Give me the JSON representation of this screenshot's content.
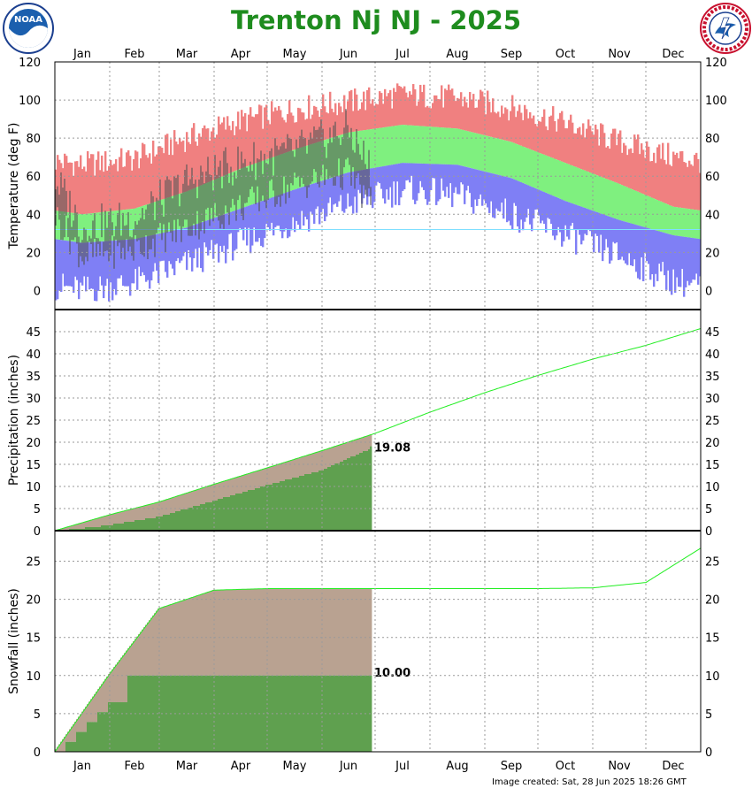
{
  "header": {
    "title": "Trenton Nj NJ - 2025",
    "footer": "Image created: Sat, 28 Jun 2025 18:26 GMT"
  },
  "icons": [
    "noaa-logo",
    "nws-logo"
  ],
  "chart_data": [
    {
      "type": "bar",
      "name": "temperature-panel",
      "ylabel": "Temperature (deg F)",
      "ylim": [
        -10,
        120
      ],
      "yticks": [
        0,
        20,
        40,
        60,
        80,
        100,
        120
      ],
      "months": [
        "Jan",
        "Feb",
        "Mar",
        "Apr",
        "May",
        "Jun",
        "Jul",
        "Aug",
        "Sep",
        "Oct",
        "Nov",
        "Dec"
      ],
      "grid": true,
      "data_through_day": 179,
      "colors": {
        "record_high": "#f08080",
        "normal_band": "#7ff07f",
        "record_low": "#7f7ff5",
        "observed": "#555555",
        "freeze_line": "#7fdfff"
      },
      "normal_high_monthly": [
        40,
        43,
        52,
        64,
        74,
        83,
        87,
        85,
        78,
        67,
        56,
        44
      ],
      "normal_low_monthly": [
        25,
        27,
        33,
        43,
        53,
        62,
        67,
        66,
        59,
        47,
        37,
        29
      ],
      "record_high_monthly": [
        66,
        69,
        80,
        89,
        95,
        99,
        103,
        101,
        96,
        88,
        78,
        70
      ],
      "record_low_monthly": [
        0,
        4,
        14,
        25,
        36,
        45,
        53,
        50,
        40,
        29,
        18,
        5
      ],
      "observed_high_monthly": [
        33,
        38,
        57,
        67,
        73,
        85
      ],
      "observed_low_monthly": [
        18,
        22,
        33,
        44,
        55,
        62
      ]
    },
    {
      "type": "area",
      "name": "precipitation-panel",
      "ylabel": "Precipitation (inches)",
      "ylim": [
        0,
        50
      ],
      "yticks": [
        0,
        5,
        10,
        15,
        20,
        25,
        30,
        35,
        40,
        45
      ],
      "grid": true,
      "colors": {
        "normal": "#22ee22",
        "observed": "#5fa04f",
        "deficit": "#b9a291"
      },
      "normal_cumulative_month_end": [
        3.6,
        6.5,
        10.5,
        14.2,
        18.1,
        22.0,
        26.8,
        31.2,
        35.1,
        38.8,
        41.9,
        45.7
      ],
      "observed_cumulative_month_end": [
        1.4,
        3.3,
        6.9,
        10.4,
        13.8,
        19.1
      ],
      "observed_total": "19.08"
    },
    {
      "type": "area",
      "name": "snowfall-panel",
      "ylabel": "Snowfall (inches)",
      "ylim": [
        0,
        29
      ],
      "yticks": [
        0,
        5,
        10,
        15,
        20,
        25
      ],
      "grid": true,
      "colors": {
        "normal": "#22ee22",
        "observed": "#5fa04f",
        "deficit": "#b9a291"
      },
      "normal_cumulative_month_end": [
        10.2,
        18.8,
        21.2,
        21.4,
        21.4,
        21.4,
        21.4,
        21.4,
        21.4,
        21.5,
        22.2,
        26.7
      ],
      "observed_cumulative_month_end": [
        6.5,
        10.0,
        10.0,
        10.0,
        10.0,
        10.0
      ],
      "observed_total": "10.00"
    }
  ]
}
